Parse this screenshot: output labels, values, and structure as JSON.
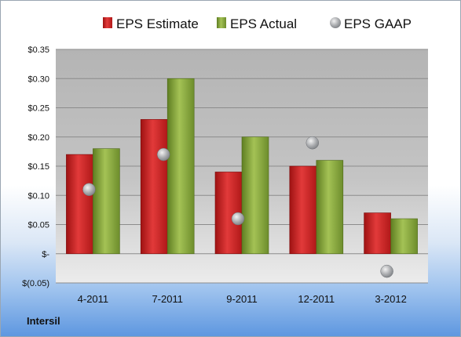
{
  "company": "Intersil",
  "chart_data": {
    "type": "bar",
    "categories": [
      "4-2011",
      "7-2011",
      "9-2011",
      "12-2011",
      "3-2012"
    ],
    "series": [
      {
        "name": "EPS Estimate",
        "kind": "bar",
        "color": "#d42a2a",
        "values": [
          0.17,
          0.23,
          0.14,
          0.15,
          0.07
        ]
      },
      {
        "name": "EPS Actual",
        "kind": "bar",
        "color": "#8fae3e",
        "values": [
          0.18,
          0.3,
          0.2,
          0.16,
          0.06
        ]
      },
      {
        "name": "EPS GAAP",
        "kind": "marker",
        "color": "#b0b4b8",
        "values": [
          0.11,
          0.17,
          0.06,
          0.19,
          -0.03
        ]
      }
    ],
    "y_ticks": [
      {
        "value": 0.35,
        "label": "$0.35"
      },
      {
        "value": 0.3,
        "label": "$0.30"
      },
      {
        "value": 0.25,
        "label": "$0.25"
      },
      {
        "value": 0.2,
        "label": "$0.20"
      },
      {
        "value": 0.15,
        "label": "$0.15"
      },
      {
        "value": 0.1,
        "label": "$0.10"
      },
      {
        "value": 0.05,
        "label": "$0.05"
      },
      {
        "value": 0,
        "label": "$-"
      },
      {
        "value": -0.05,
        "label": "$(0.05)"
      }
    ],
    "ylim": [
      -0.05,
      0.35
    ],
    "grid": true,
    "legend_position": "top"
  }
}
